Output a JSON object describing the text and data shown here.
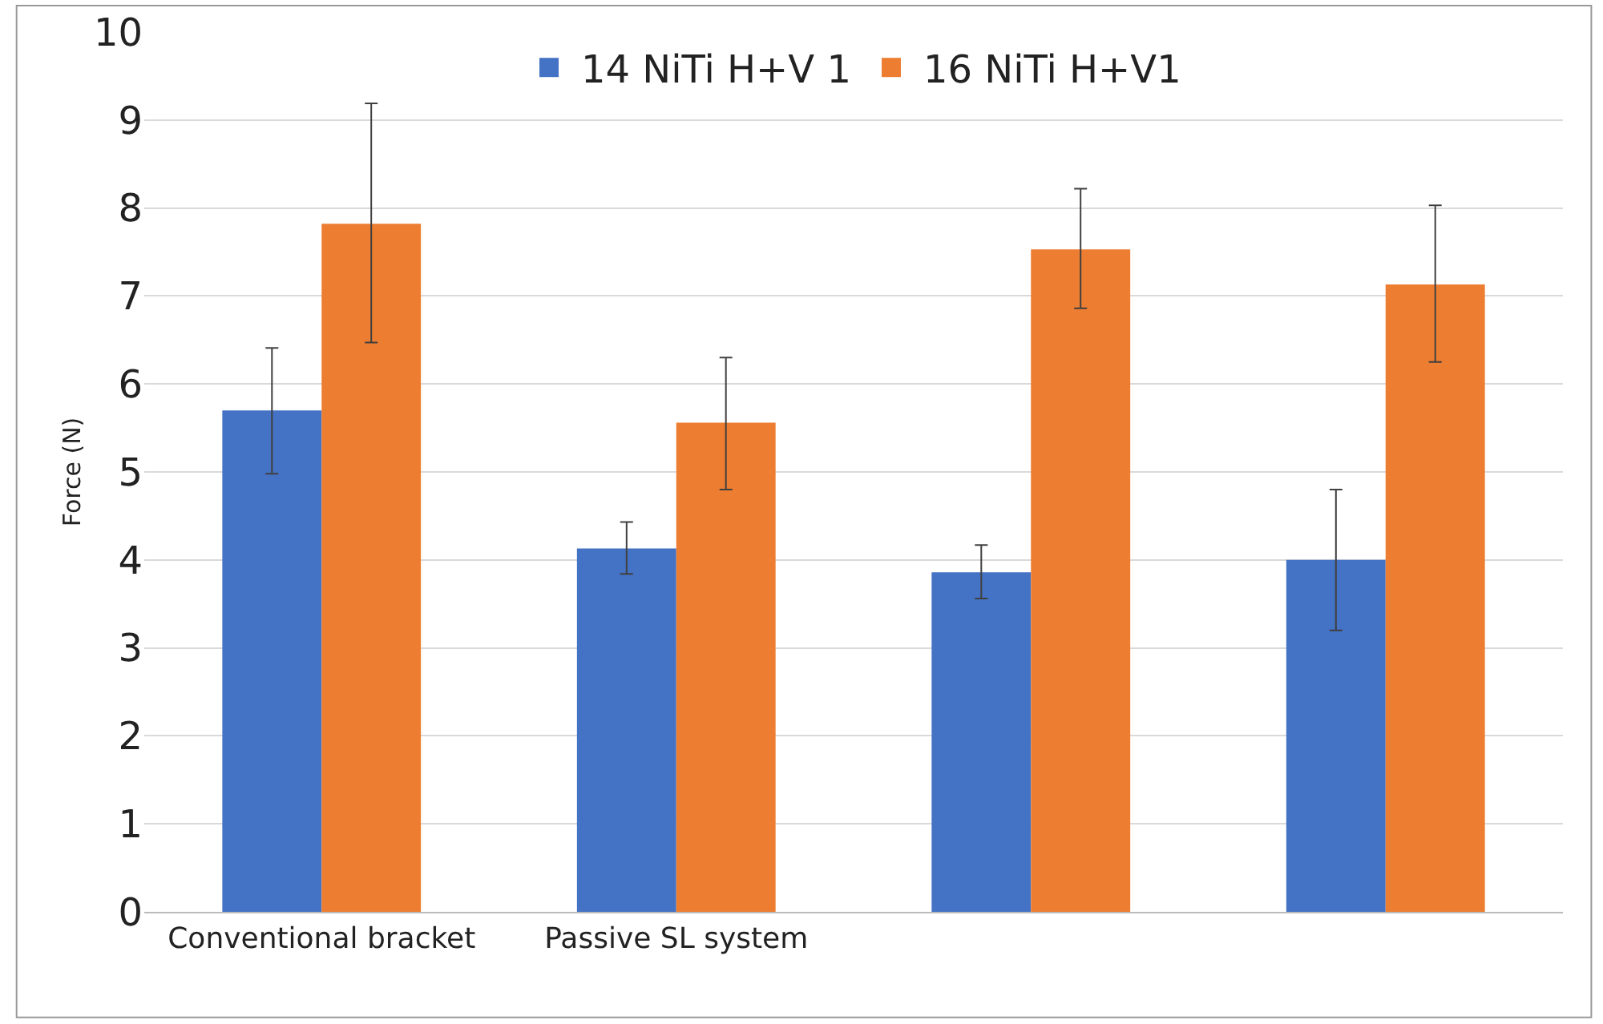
{
  "chart_data": {
    "type": "bar",
    "ylabel": "Force (N)",
    "categories": [
      "Conventional bracket",
      "Passive SL system",
      null,
      null
    ],
    "series": [
      {
        "name": "14 NiTi H+V 1",
        "color": "#4472c4",
        "values": [
          5.7,
          4.13,
          3.86,
          4.0
        ],
        "errors": [
          [
            4.98,
            6.41
          ],
          [
            3.84,
            4.43
          ],
          [
            3.56,
            4.17
          ],
          [
            3.2,
            4.8
          ]
        ]
      },
      {
        "name": "16 NiTi H+V1",
        "color": "#ed7d31",
        "values": [
          7.82,
          5.56,
          7.53,
          7.13
        ],
        "errors": [
          [
            6.47,
            9.19
          ],
          [
            4.8,
            6.3
          ],
          [
            6.86,
            8.22
          ],
          [
            6.25,
            8.03
          ]
        ]
      }
    ],
    "ylim": [
      0,
      10
    ],
    "yticks": [
      0,
      1,
      2,
      3,
      4,
      5,
      6,
      7,
      8,
      9,
      10
    ],
    "grid": "y",
    "legend": "top"
  }
}
